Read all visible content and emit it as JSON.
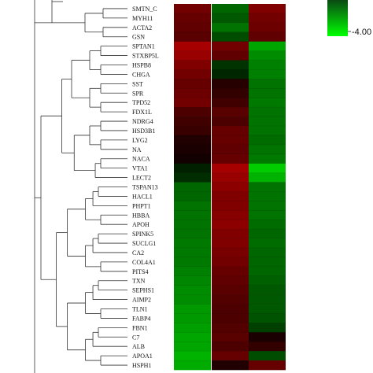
{
  "chart_data": {
    "type": "heatmap",
    "rows": [
      "SMTN_C",
      "MYH11",
      "ACTA2",
      "GSN",
      "SPTAN1",
      "STXBP5L",
      "HSPB8",
      "CHGA",
      "SST",
      "SPR",
      "TPD52",
      "FDX1L",
      "NDRG4",
      "HSD3B1",
      "LYG2",
      "NA",
      "NACA",
      "VTA1",
      "LECT2",
      "TSPAN13",
      "HACL1",
      "PHPT1",
      "HBBA",
      "APOH",
      "SPINK5",
      "SUCLG1",
      "CA2",
      "COL4A1",
      "PITS4",
      "TXN",
      "SEPHS1",
      "AIMP2",
      "TLN1",
      "FABP4",
      "FBN1",
      "C7",
      "ALB",
      "APOA1",
      "HSPH1"
    ],
    "columns": [
      "",
      "",
      ""
    ],
    "values": [
      [
        1.8,
        -1.6,
        2.0
      ],
      [
        1.6,
        -1.4,
        1.8
      ],
      [
        1.5,
        -1.8,
        1.7
      ],
      [
        1.4,
        -1.2,
        1.5
      ],
      [
        2.6,
        1.8,
        -2.6
      ],
      [
        2.4,
        1.5,
        -2.2
      ],
      [
        2.0,
        -0.8,
        -2.0
      ],
      [
        1.8,
        -0.6,
        -2.0
      ],
      [
        1.6,
        0.6,
        -1.8
      ],
      [
        1.7,
        0.8,
        -1.8
      ],
      [
        1.8,
        1.0,
        -1.9
      ],
      [
        1.2,
        1.4,
        -1.8
      ],
      [
        1.0,
        1.2,
        -1.8
      ],
      [
        0.9,
        1.6,
        -1.8
      ],
      [
        0.5,
        1.6,
        -1.7
      ],
      [
        0.4,
        1.5,
        -1.8
      ],
      [
        0.3,
        1.6,
        -1.9
      ],
      [
        -0.5,
        2.6,
        -3.2
      ],
      [
        -0.7,
        2.4,
        -2.8
      ],
      [
        -1.6,
        2.2,
        -1.8
      ],
      [
        -1.6,
        2.0,
        -1.8
      ],
      [
        -1.8,
        2.0,
        -1.8
      ],
      [
        -1.8,
        2.1,
        -1.8
      ],
      [
        -1.8,
        2.2,
        -1.7
      ],
      [
        -1.8,
        2.0,
        -1.6
      ],
      [
        -1.9,
        2.0,
        -1.7
      ],
      [
        -1.9,
        1.9,
        -1.6
      ],
      [
        -1.9,
        1.8,
        -1.6
      ],
      [
        -2.0,
        1.6,
        -1.6
      ],
      [
        -2.1,
        1.5,
        -1.5
      ],
      [
        -2.2,
        1.4,
        -1.4
      ],
      [
        -2.2,
        1.3,
        -1.4
      ],
      [
        -2.4,
        1.2,
        -1.4
      ],
      [
        -2.4,
        1.2,
        -1.3
      ],
      [
        -2.5,
        1.3,
        -1.0
      ],
      [
        -2.6,
        1.4,
        0.4
      ],
      [
        -2.6,
        1.2,
        0.8
      ],
      [
        -2.8,
        1.6,
        -1.2
      ],
      [
        -2.7,
        0.5,
        1.6
      ]
    ],
    "color_scale": {
      "min": -4.0,
      "max": 4.0,
      "low_color": "#00ff00",
      "mid_color": "#000000",
      "high_color": "#ff0000"
    },
    "legend": {
      "position": "top-right",
      "tick_label": "-4.00"
    }
  }
}
